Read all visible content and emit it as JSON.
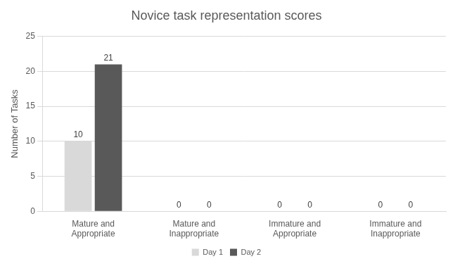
{
  "chart_data": {
    "type": "bar",
    "title": "Novice task representation scores",
    "y_label": "Number of Tasks",
    "categories": [
      "Mature and Appropriate",
      "Mature and Inappropriate",
      "Immature and Appropriate",
      "Immature and Inappropriate"
    ],
    "series": [
      {
        "name": "Day 1",
        "color": "#d9d9d9",
        "values": [
          10,
          0,
          0,
          0
        ]
      },
      {
        "name": "Day 2",
        "color": "#595959",
        "values": [
          21,
          0,
          0,
          0
        ]
      }
    ],
    "ylim": [
      0,
      25
    ],
    "yticks": [
      0,
      5,
      10,
      15,
      20,
      25
    ],
    "grid": true,
    "legend": "bottom",
    "data_labels": true
  }
}
